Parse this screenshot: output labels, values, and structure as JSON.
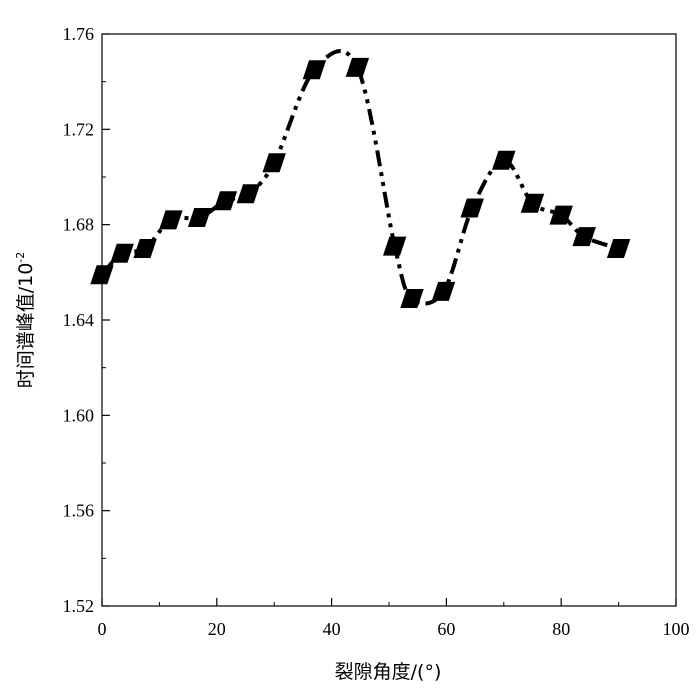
{
  "chart_data": {
    "type": "line",
    "title": "",
    "xlabel": "裂隙角度/(°)",
    "ylabel": "时间谱峰值/10",
    "ylabel_exponent": "-2",
    "xlim": [
      0,
      100
    ],
    "ylim": [
      1.52,
      1.76
    ],
    "x_ticks": [
      0,
      20,
      40,
      60,
      80,
      100
    ],
    "x_tick_labels": [
      "0",
      "20",
      "40",
      "60",
      "80",
      "100"
    ],
    "y_ticks": [
      1.52,
      1.56,
      1.6,
      1.64,
      1.68,
      1.72,
      1.76
    ],
    "y_tick_labels": [
      "1.52",
      "1.56",
      "1.60",
      "1.64",
      "1.68",
      "1.72",
      "1.76"
    ],
    "grid": false,
    "series": [
      {
        "marker": "filled-parallelogram",
        "line_style": "dash-dot-dot",
        "color": "#000000",
        "x": [
          0,
          3.5,
          7.5,
          12,
          17,
          21.5,
          25.5,
          30,
          37,
          44.5,
          51,
          54,
          59.5,
          64.5,
          70,
          75,
          80,
          84,
          90
        ],
        "y": [
          1.659,
          1.668,
          1.67,
          1.682,
          1.683,
          1.69,
          1.693,
          1.706,
          1.745,
          1.746,
          1.671,
          1.649,
          1.652,
          1.687,
          1.707,
          1.689,
          1.684,
          1.675,
          1.67
        ]
      }
    ]
  }
}
